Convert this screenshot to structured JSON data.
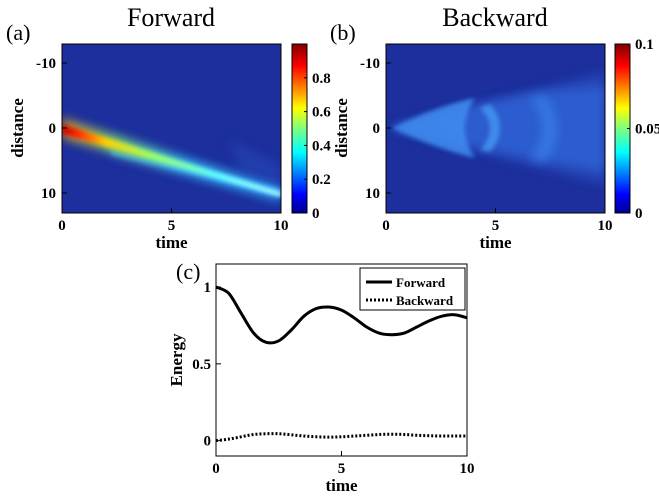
{
  "chart_data": [
    {
      "type": "heatmap",
      "panel": "(a)",
      "title": "Forward",
      "xlabel": "time",
      "ylabel": "distance",
      "xlim": [
        0,
        10
      ],
      "ylim": [
        12.5,
        -12.5
      ],
      "xticks": [
        "0",
        "5",
        "10"
      ],
      "yticks": [
        "-10",
        "0",
        "10"
      ],
      "colorbar": {
        "min": 0,
        "max": 1.0,
        "ticks": [
          "0",
          "0.2",
          "0.4",
          "0.6",
          "0.8"
        ]
      },
      "features": [
        {
          "label": "main beam",
          "x_start": 0,
          "y_start": 0,
          "x_end": 10,
          "y_end": 10,
          "peak": 0.95
        },
        {
          "label": "secondary beam",
          "x_start": 2,
          "y_start": 2.5,
          "x_end": 10,
          "y_end": 8.5,
          "peak": 0.2
        }
      ]
    },
    {
      "type": "heatmap",
      "panel": "(b)",
      "title": "Backward",
      "xlabel": "time",
      "ylabel": "distance",
      "xlim": [
        0,
        10
      ],
      "ylim": [
        12.5,
        -12.5
      ],
      "xticks": [
        "0",
        "5",
        "10"
      ],
      "yticks": [
        "-10",
        "0",
        "10"
      ],
      "colorbar": {
        "min": 0,
        "max": 0.1,
        "ticks": [
          "0",
          "0.05",
          "0.1"
        ]
      },
      "features": [
        {
          "label": "wedge",
          "apex_x": 0,
          "apex_y": 0,
          "x_end": 10,
          "y_top": -8.5,
          "y_bottom": 7.5,
          "peak": 0.03
        }
      ]
    },
    {
      "type": "line",
      "panel": "(c)",
      "xlabel": "time",
      "ylabel": "Energy",
      "xlim": [
        0,
        10
      ],
      "ylim": [
        -0.1,
        1.15
      ],
      "xticks": [
        "0",
        "5",
        "10"
      ],
      "yticks": [
        "0",
        "0.5",
        "1"
      ],
      "legend_position": "top-right",
      "series": [
        {
          "name": "Forward",
          "style": "solid",
          "x": [
            0,
            0.5,
            1,
            1.5,
            2,
            2.5,
            3,
            3.5,
            4,
            4.5,
            5,
            5.5,
            6,
            6.5,
            7,
            7.5,
            8,
            8.5,
            9,
            9.5,
            10
          ],
          "y": [
            1.0,
            0.96,
            0.83,
            0.7,
            0.64,
            0.65,
            0.72,
            0.81,
            0.86,
            0.87,
            0.85,
            0.8,
            0.74,
            0.7,
            0.69,
            0.7,
            0.74,
            0.78,
            0.81,
            0.82,
            0.8
          ]
        },
        {
          "name": "Backward",
          "style": "dotted",
          "x": [
            0,
            0.5,
            1,
            1.5,
            2,
            2.5,
            3,
            3.5,
            4,
            4.5,
            5,
            5.5,
            6,
            6.5,
            7,
            7.5,
            8,
            8.5,
            9,
            9.5,
            10
          ],
          "y": [
            0.0,
            0.01,
            0.025,
            0.04,
            0.045,
            0.045,
            0.038,
            0.03,
            0.025,
            0.023,
            0.025,
            0.03,
            0.035,
            0.04,
            0.042,
            0.04,
            0.035,
            0.032,
            0.03,
            0.03,
            0.03
          ]
        }
      ]
    }
  ]
}
